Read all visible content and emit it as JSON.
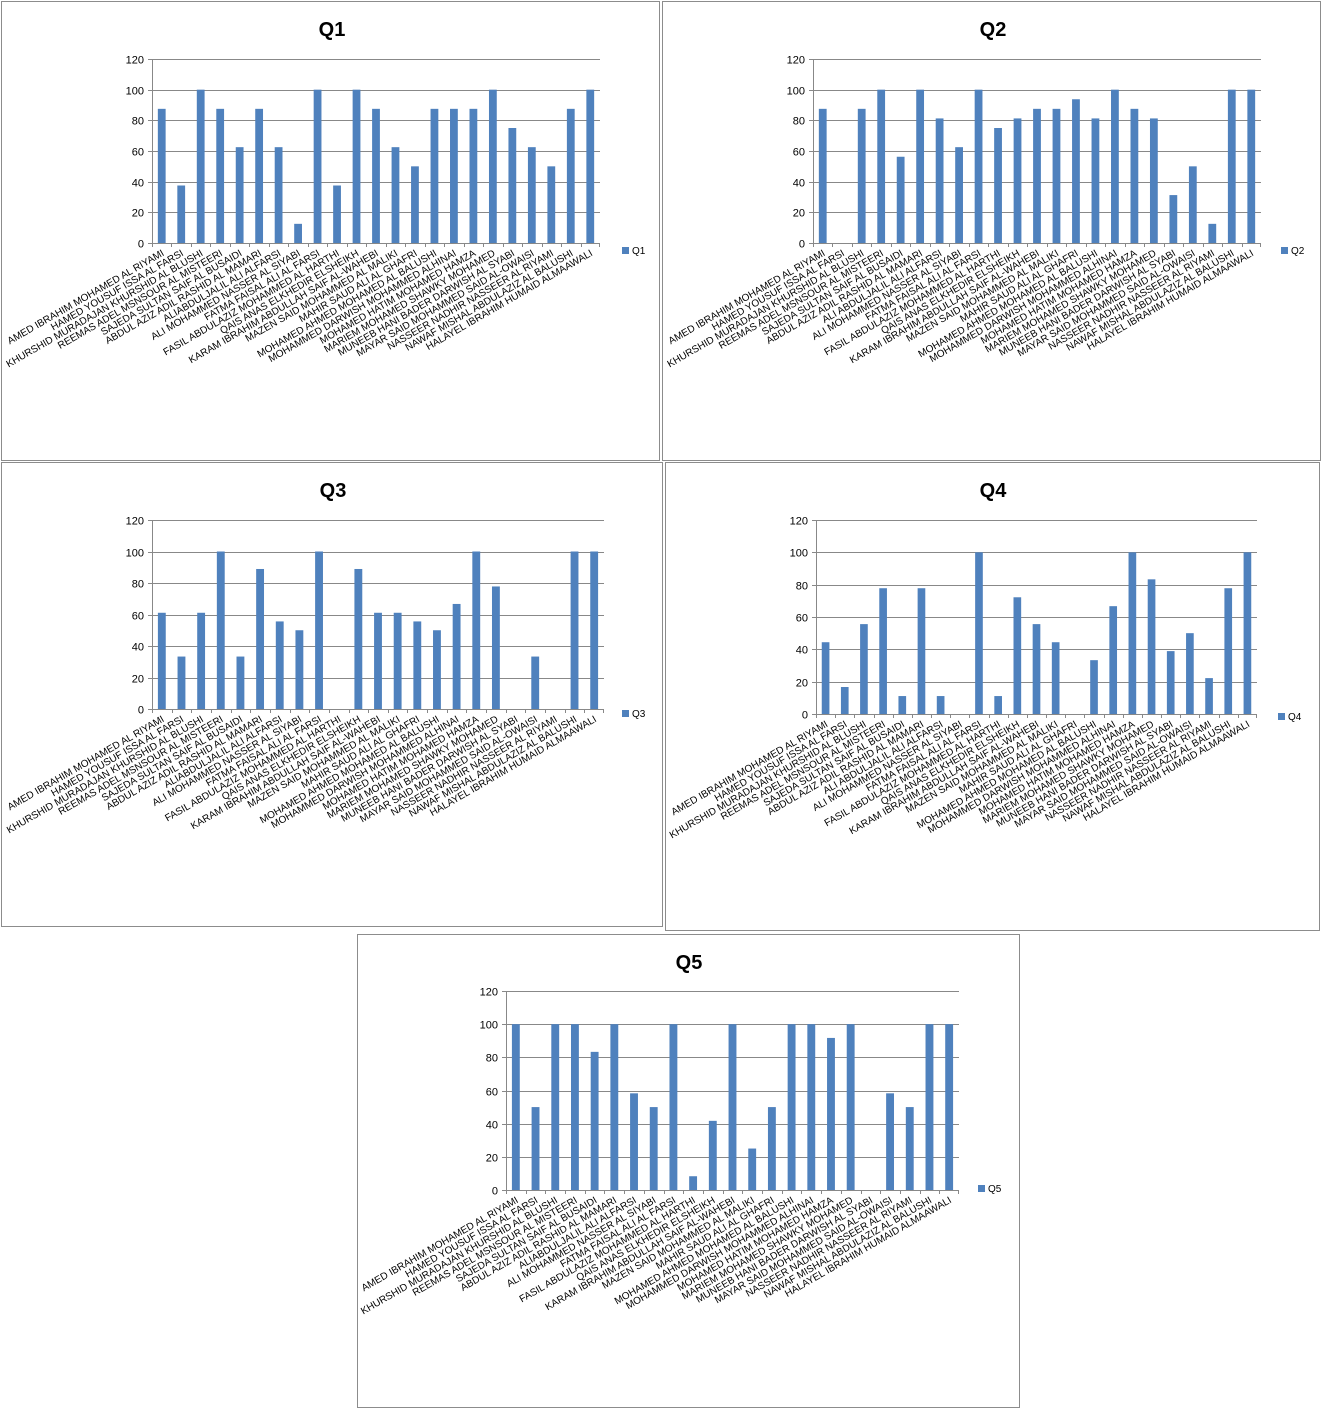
{
  "colors": {
    "bar": "#4f81bd",
    "grid": "#888888",
    "axis": "#888888",
    "border": "#8c8c8c"
  },
  "chart_data": [
    {
      "type": "bar",
      "title": "Q1",
      "legend": "Q1",
      "legend_position": "right",
      "ylim": [
        0,
        120
      ],
      "yticks": [
        0,
        20,
        40,
        60,
        80,
        100,
        120
      ],
      "grid": true,
      "categories": [
        "AMED IBRAHIM MOHAMED AL RIYAMI",
        "HAMED YOUSUF ISSA AL FARSI",
        "KHURSHID MURADAJAN KHURSHID AL BLUSHI",
        "REEMAS ADEL MSNSOUR AL MISTEERI",
        "SAJEDA SULTAN SAIF AL BUSAIDI",
        "ABDUL AZIZ ADIL RASHID AL MAMARI",
        "ALIABDULJALIL ALI ALFARSI",
        "ALI MOHAMMED NASSER AL SIYABI",
        "FATMA FAISAL ALI AL FARSI",
        "FASIL ABDULAZIZ MOHAMMED AL HARTHI",
        "QAIS ANAS ELKHEDIR ELSHEIKH",
        "KARAM IBRAHIM ABDULLAH SAIF AL-WAHEBI",
        "MAZEN SAID MOHAMMED AL MALIKI",
        "MAHIR SAUD ALI AL GHAFRI",
        "MOHAMED AHMED MOHAMED AL BALUSHI",
        "MOHAMMED DARWISH MOHAMMED ALHINAI",
        "MOHAMED HATIM MOHAMED HAMZA",
        "MARIEM MOHAMED SHAWKY MOHAMED",
        "MUNEEB HANI BADER DARWISH AL SYABI",
        "MAYAR SAID MOHAMMED SAID AL-OWAISI",
        "NASSEER NADHIR NASSEER AL RIYAMI",
        "NAWAF MISHAL ABDULAZIZ AL BALUSHI",
        "HALAYEL IBRAHIM HUMAID ALMAAWALI"
      ],
      "values": [
        87.5,
        37.5,
        100,
        87.5,
        62.5,
        87.5,
        62.5,
        12.5,
        100,
        37.5,
        100,
        87.5,
        62.5,
        50,
        87.5,
        87.5,
        87.5,
        100,
        75,
        62.5,
        50,
        87.5,
        100
      ]
    },
    {
      "type": "bar",
      "title": "Q2",
      "legend": "Q2",
      "legend_position": "right",
      "ylim": [
        0,
        120
      ],
      "yticks": [
        0,
        20,
        40,
        60,
        80,
        100,
        120
      ],
      "grid": true,
      "categories": [
        "AMED IBRAHIM MOHAMED AL RIYAMI",
        "HAMED YOUSUF ISSA AL FARSI",
        "KHURSHID MURADAJAN KHURSHID AL BLUSHI",
        "REEMAS ADEL MSNSOUR AL MISTEERI",
        "SAJEDA SULTAN SAIF AL BUSAIDI",
        "ABDUL AZIZ ADIL RASHID AL MAMARI",
        "ALI ABDULJALIL ALI ALFARSI",
        "ALI MOHAMMED NASSER AL SIYABI",
        "FATMA FAISAL ALI AL FARSI",
        "FASIL ABDULAZIZ MOHAMMED AL HARTHI",
        "QAIS ANAS ELKHEDIR ELSHEIKH",
        "KARAM IBRAHIM ABDULLAH SAIF AL-WAHEBI",
        "MAZEN SAID MOHAMMED AL MALIKI",
        "MAHIR SAUD ALI AL GHAFRI",
        "MOHAMED AHMED MOHAMED AL BALUSHI",
        "MOHAMMED DARWISH MOHAMMED ALHINAI",
        "MOHAMED HATIM MOHAMED HAMZA",
        "MARIEM MOHAMED SHAWKY MOHAMED",
        "MUNEEB HANI BADER DARWISH AL SYABI",
        "MAYAR SAID MOHAMMED SAID AL-OWAISI",
        "NASSEER NADHIR NASSEER AL RIYAMI",
        "NAWAF MISHAL ABDULAZIZ AL BALUSHI",
        "HALAYEL IBRAHIM HUMAID ALMAAWALI"
      ],
      "values": [
        87.5,
        0,
        87.5,
        100,
        56.25,
        100,
        81.25,
        62.5,
        100,
        75,
        81.25,
        87.5,
        87.5,
        93.75,
        81.25,
        100,
        87.5,
        81.25,
        31.25,
        50,
        12.5,
        100,
        100
      ]
    },
    {
      "type": "bar",
      "title": "Q3",
      "legend": "Q3",
      "legend_position": "right",
      "ylim": [
        0,
        120
      ],
      "yticks": [
        0,
        20,
        40,
        60,
        80,
        100,
        120
      ],
      "grid": true,
      "categories": [
        "AMED IBRAHIM MOHAMED AL RIYAMI",
        "HAMED YOUSUF ISSA AL FARSI",
        "KHURSHID MURADAJAN KHURSHID AL BLUSHI",
        "REEMAS ADEL MSNSOUR AL MISTEERI",
        "SAJEDA SULTAN SAIF AL BUSAIDI",
        "ABDUL AZIZ ADIL RASHID AL MAMARI",
        "ALIABDULJALIL ALI ALFARSI",
        "ALI MOHAMMED NASSER AL SIYABI",
        "FATMA FAISAL ALI AL FARSI",
        "FASIL ABDULAZIZ MOHAMMED AL HARTHI",
        "QAIS ANAS ELKHEDIR ELSHEIKH",
        "KARAM IBRAHIM ABDULLAH SAIF AL-WAHEBI",
        "MAZEN SAID MOHAMMED AL MALIKI",
        "MAHIR SAUD ALI AL GHAFRI",
        "MOHAMED AHMED MOHAMED AL BALUSHI",
        "MOHAMMED DARWISH MOHAMMED ALHINAI",
        "MOHAMED HATIM MOHAMED HAMZA",
        "MARIEM MOHAMED SHAWKY MOHAMED",
        "MUNEEB HANI BADER DARWISH AL SYABI",
        "MAYAR SAID MOHAMMED SAID AL-OWAISI",
        "NASSEER NADHIR NASSEER AL RIYAMI",
        "NAWAF MISHAL ABDULAZIZ AL BALUSHI",
        "HALAYEL IBRAHIM HUMAID ALMAAWALI"
      ],
      "values": [
        61.1,
        33.3,
        61.1,
        100,
        33.3,
        88.9,
        55.6,
        50,
        100,
        0,
        88.9,
        61.1,
        61.1,
        55.6,
        50,
        66.7,
        100,
        77.8,
        0,
        33.3,
        0,
        100,
        100
      ]
    },
    {
      "type": "bar",
      "title": "Q4",
      "legend": "Q4",
      "legend_position": "right",
      "ylim": [
        0,
        120
      ],
      "yticks": [
        0,
        20,
        40,
        60,
        80,
        100,
        120
      ],
      "grid": true,
      "categories": [
        "AMED IBRAHIM MOHAMED AL RIYAMI",
        "HAMED YOUSUF ISSA AL FARSI",
        "KHURSHID MURADAJAN KHURSHID AL BLUSHI",
        "REEMAS ADEL MSNSOUR AL MISTEERI",
        "SAJEDA SULTAN SAIF AL BUSAIDI",
        "ABDUL AZIZ ADIL RASHID AL MAMARI",
        "ALI ABDULJALIL ALI ALFARSI",
        "ALI MOHAMMED NASSER AL SIYABI",
        "FATMA FAISAL ALI AL FARSI",
        "FASIL ABDULAZIZ MOHAMMED AL HARTHI",
        "QAIS ANAS ELKHEDIR ELSHEIKH",
        "KARAM IBRAHIM ABDULLAH SAIF AL-WAHEBI",
        "MAZEN SAID MOHAMMED AL MALIKI",
        "MAHIR SAUD ALI AL GHAFRI",
        "MOHAMED AHMED MOHAMED AL BALUSHI",
        "MOHAMMED DARWISH MOHAMMED ALHINAI",
        "MOHAMED HATIM MOHAMED HAMZA",
        "MARIEM MOHAMED SHAWKY MOHAMED",
        "MUNEEB HANI BADER DARWISH AL SYABI",
        "MAYAR SAID MOHAMMED SAID AL-OWAISI",
        "NASSEER NADHIR NASSEER AL RIYAMI",
        "NAWAF MISHAL ABDULAZIZ AL BALUSHI",
        "HALAYEL IBRAHIM HUMAID ALMAAWALI"
      ],
      "values": [
        44.4,
        16.7,
        55.6,
        77.8,
        11.1,
        77.8,
        11.1,
        0,
        100,
        11.1,
        72.2,
        55.6,
        44.4,
        0,
        33.3,
        66.7,
        100,
        83.3,
        38.9,
        50,
        22.2,
        77.8,
        100
      ]
    },
    {
      "type": "bar",
      "title": "Q5",
      "legend": "Q5",
      "legend_position": "right",
      "ylim": [
        0,
        120
      ],
      "yticks": [
        0,
        20,
        40,
        60,
        80,
        100,
        120
      ],
      "grid": true,
      "categories": [
        "AMED IBRAHIM MOHAMED AL RIYAMI",
        "HAMED YOUSUF ISSA AL FARSI",
        "KHURSHID MURADAJAN KHURSHID AL BLUSHI",
        "REEMAS ADEL MSNSOUR AL MISTEERI",
        "SAJEDA SULTAN SAIF AL BUSAIDI",
        "ABDUL AZIZ ADIL RASHID AL MAMARI",
        "ALIABDULJALIL ALI ALFARSI",
        "ALI MOHAMMED NASSER AL SIYABI",
        "FATMA FAISAL ALI AL FARSI",
        "FASIL ABDULAZIZ MOHAMMED AL HARTHI",
        "QAIS ANAS ELKHEDIR ELSHEIKH",
        "KARAM IBRAHIM ABDULLAH SAIF AL-WAHEBI",
        "MAZEN SAID MOHAMMED AL MALIKI",
        "MAHIR SAUD ALI AL GHAFRI",
        "MOHAMED AHMED MOHAMED AL BALUSHI",
        "MOHAMMED DARWISH MOHAMMED ALHINAI",
        "MOHAMED HATIM MOHAMED HAMZA",
        "MARIEM MOHAMED SHAWKY MOHAMED",
        "MUNEEB HANI BADER DARWISH AL SYABI",
        "MAYAR SAID MOHAMMED SAID AL-OWAISI",
        "NASSEER NADHIR NASSEER AL RIYAMI",
        "NAWAF MISHAL ABDULAZIZ AL BALUSHI",
        "HALAYEL IBRAHIM HUMAID ALMAAWALI"
      ],
      "values": [
        100,
        50,
        100,
        100,
        83.3,
        100,
        58.3,
        50,
        100,
        8.3,
        41.7,
        100,
        25,
        50,
        100,
        100,
        91.7,
        100,
        0,
        58.3,
        50,
        100,
        100
      ]
    }
  ]
}
